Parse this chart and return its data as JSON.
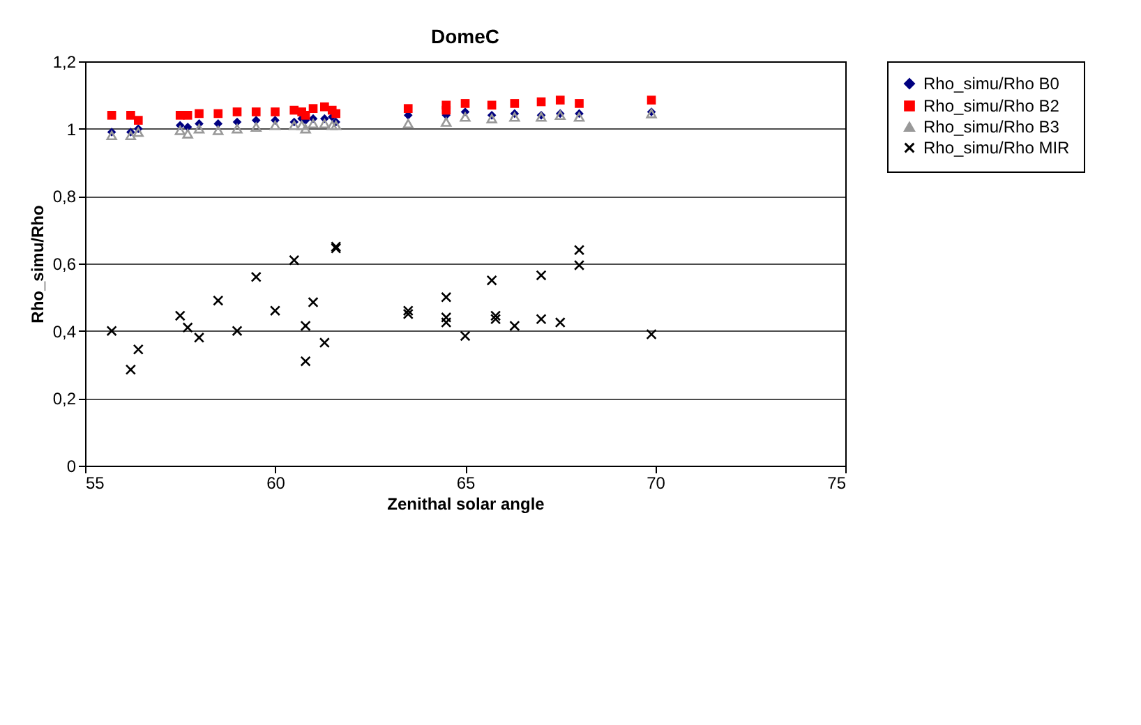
{
  "chart_data": {
    "type": "scatter",
    "title": "DomeC",
    "xlabel": "Zenithal solar angle",
    "ylabel": "Rho_simu/Rho",
    "xlim": [
      55,
      75
    ],
    "xticks": [
      55,
      60,
      65,
      70,
      75
    ],
    "ylim": [
      0,
      1.2
    ],
    "yticks": [
      0,
      {
        "value": 0.2,
        "label": "0,2"
      },
      {
        "value": 0.4,
        "label": "0,4"
      },
      {
        "value": 0.6,
        "label": "0,6"
      },
      {
        "value": 0.8,
        "label": "0,8"
      },
      1,
      {
        "value": 1.2,
        "label": "1,2"
      }
    ],
    "grid": "y",
    "legend": "right",
    "series": [
      {
        "name": "Rho_simu/Rho B0",
        "color": "#000080",
        "marker": "diamond",
        "x": [
          55.7,
          56.2,
          56.4,
          57.5,
          57.7,
          58,
          58.5,
          59,
          59.5,
          60,
          60.5,
          60.7,
          60.8,
          61,
          61.3,
          61.5,
          61.6,
          63.5,
          64.5,
          65,
          65.7,
          66.3,
          67,
          67.5,
          68,
          69.9
        ],
        "values": [
          0.99,
          0.99,
          1.0,
          1.01,
          1.005,
          1.015,
          1.015,
          1.02,
          1.025,
          1.025,
          1.02,
          1.03,
          1.025,
          1.03,
          1.03,
          1.035,
          1.02,
          1.04,
          1.04,
          1.05,
          1.04,
          1.045,
          1.04,
          1.045,
          1.045,
          1.05
        ]
      },
      {
        "name": "Rho_simu/Rho B2",
        "color": "#ff0000",
        "marker": "square",
        "x": [
          55.7,
          56.2,
          56.4,
          57.5,
          57.7,
          58,
          58.5,
          59,
          59.5,
          60,
          60.5,
          60.7,
          60.8,
          61,
          61.3,
          61.5,
          61.6,
          63.5,
          64.5,
          64.5,
          65,
          65.7,
          66.3,
          67,
          67.5,
          68,
          69.9
        ],
        "values": [
          1.04,
          1.04,
          1.025,
          1.04,
          1.04,
          1.045,
          1.045,
          1.05,
          1.05,
          1.05,
          1.055,
          1.05,
          1.04,
          1.06,
          1.065,
          1.055,
          1.045,
          1.06,
          1.07,
          1.055,
          1.075,
          1.07,
          1.075,
          1.08,
          1.085,
          1.075,
          1.085
        ]
      },
      {
        "name": "Rho_simu/Rho B3",
        "color": "#999999",
        "marker": "triangle",
        "x": [
          55.7,
          56.2,
          56.4,
          57.5,
          57.7,
          58,
          58.5,
          59,
          59.5,
          60,
          60.5,
          60.7,
          60.8,
          61,
          61.3,
          61.5,
          61.6,
          63.5,
          64.5,
          65,
          65.7,
          66.3,
          67,
          67.5,
          68,
          69.9
        ],
        "values": [
          0.98,
          0.98,
          0.99,
          0.995,
          0.985,
          1.0,
          0.995,
          1.0,
          1.005,
          1.01,
          1.01,
          1.01,
          1.0,
          1.015,
          1.015,
          1.01,
          1.01,
          1.015,
          1.02,
          1.035,
          1.03,
          1.035,
          1.035,
          1.04,
          1.035,
          1.045
        ]
      },
      {
        "name": "Rho_simu/Rho MIR",
        "color": "#000000",
        "marker": "cross",
        "x": [
          55.7,
          56.2,
          56.4,
          57.5,
          57.7,
          58,
          58.5,
          59,
          59.5,
          60,
          60.5,
          60.8,
          60.8,
          61,
          61.3,
          61.6,
          61.6,
          63.5,
          63.5,
          64.5,
          64.5,
          64.5,
          65,
          65.7,
          65.8,
          65.8,
          66.3,
          67,
          67,
          67.5,
          68,
          68,
          69.9
        ],
        "values": [
          0.4,
          0.285,
          0.345,
          0.445,
          0.41,
          0.38,
          0.49,
          0.4,
          0.56,
          0.46,
          0.61,
          0.415,
          0.31,
          0.485,
          0.365,
          0.65,
          0.645,
          0.46,
          0.45,
          0.5,
          0.44,
          0.425,
          0.385,
          0.55,
          0.445,
          0.435,
          0.415,
          0.565,
          0.435,
          0.425,
          0.64,
          0.595,
          0.39
        ]
      }
    ]
  }
}
